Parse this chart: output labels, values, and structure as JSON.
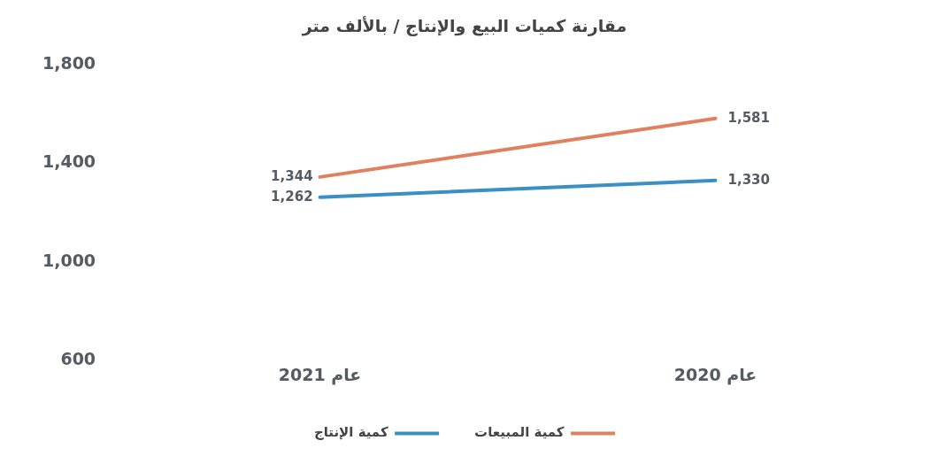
{
  "chart_data": {
    "type": "line",
    "title": "مقارنة كميات البيع والإنتاج / بالألف متر",
    "categories": [
      "عام 2021",
      "عام 2020"
    ],
    "series": [
      {
        "name": "كمية المبيعات",
        "color": "#e0805f",
        "values": [
          1344,
          1581
        ],
        "value_labels": [
          "1,344",
          "1,581"
        ]
      },
      {
        "name": "كمية الإنتاج",
        "color": "#3a8fc4",
        "values": [
          1262,
          1330
        ],
        "value_labels": [
          "1,262",
          "1,330"
        ]
      }
    ],
    "ylim": [
      600,
      1800
    ],
    "yticks": [
      {
        "value": 600,
        "label": "600"
      },
      {
        "value": 1000,
        "label": "1,000"
      },
      {
        "value": 1400,
        "label": "1,400"
      },
      {
        "value": 1800,
        "label": "1,800"
      }
    ],
    "grid": false,
    "legend": "bottom",
    "marker": "none",
    "line_style": "solid"
  }
}
